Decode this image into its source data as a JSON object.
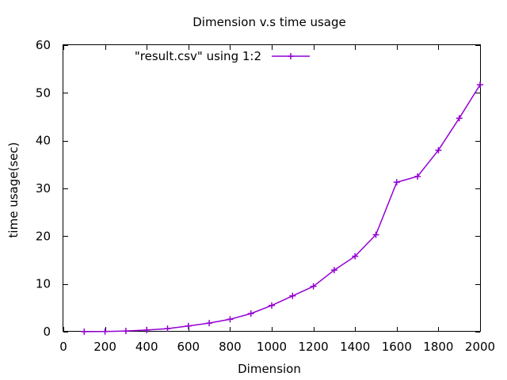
{
  "chart_data": {
    "type": "line",
    "title": "Dimension v.s time usage",
    "xlabel": "Dimension",
    "ylabel": "time usage(sec)",
    "xlim": [
      0,
      2000
    ],
    "ylim": [
      0,
      60
    ],
    "xticks": [
      0,
      200,
      400,
      600,
      800,
      1000,
      1200,
      1400,
      1600,
      1800,
      2000
    ],
    "yticks": [
      0,
      10,
      20,
      30,
      40,
      50,
      60
    ],
    "grid": false,
    "legend_position": "top",
    "series": [
      {
        "name": "\"result.csv\" using 1:2",
        "color": "#9400d3",
        "marker": "plus",
        "x": [
          100,
          200,
          300,
          400,
          500,
          600,
          700,
          800,
          900,
          1000,
          1100,
          1200,
          1300,
          1400,
          1500,
          1600,
          1700,
          1800,
          1900,
          2000
        ],
        "y": [
          0.02,
          0.05,
          0.15,
          0.35,
          0.65,
          1.2,
          1.8,
          2.6,
          3.8,
          5.5,
          7.5,
          9.5,
          12.9,
          15.8,
          20.3,
          31.3,
          32.5,
          38.0,
          44.7,
          51.7
        ]
      }
    ]
  }
}
